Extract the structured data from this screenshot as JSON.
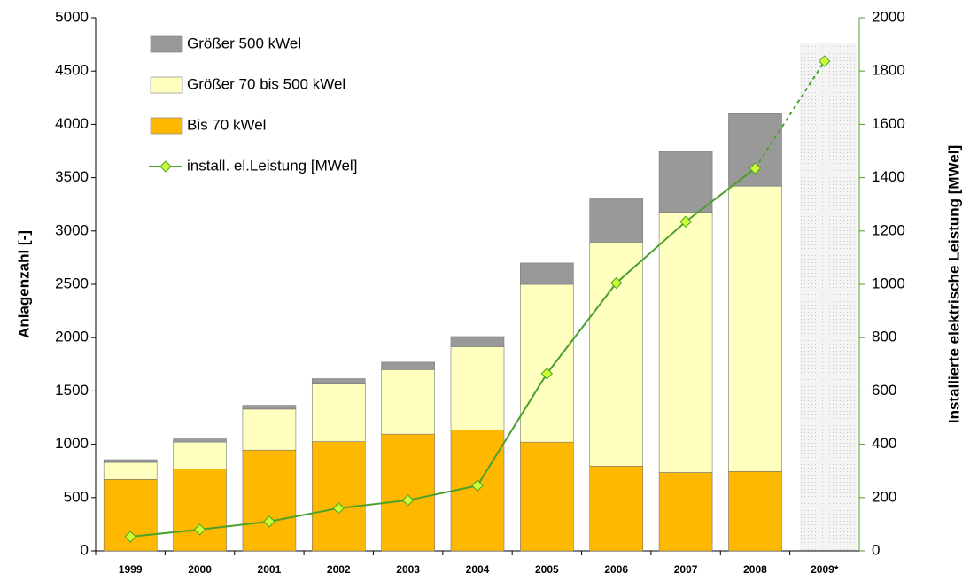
{
  "chart_data": {
    "type": "bar",
    "categories": [
      "1999",
      "2000",
      "2001",
      "2002",
      "2003",
      "2004",
      "2005",
      "2006",
      "2007",
      "2008",
      "2009*"
    ],
    "series": [
      {
        "name": "Bis 70 kWel",
        "color": "#ffb800",
        "values": [
          670,
          770,
          945,
          1025,
          1095,
          1135,
          1020,
          795,
          735,
          745,
          null
        ]
      },
      {
        "name": "Größer 70 bis 500 kWel",
        "color": "#ffffc0",
        "values": [
          160,
          250,
          385,
          540,
          605,
          780,
          1480,
          2100,
          2440,
          2675,
          null
        ]
      },
      {
        "name": "Größer 500 kWel",
        "color": "#999999",
        "values": [
          25,
          30,
          35,
          50,
          70,
          95,
          200,
          415,
          570,
          680,
          null
        ]
      },
      {
        "name": "install. el.Leistung [MWel]",
        "color": "#4aa02c",
        "marker_color": "#ccff33",
        "axis": "y2",
        "line": true,
        "dashed_last_segment": true,
        "values": [
          53,
          80,
          110,
          160,
          190,
          245,
          665,
          1005,
          1235,
          1435,
          1837
        ]
      }
    ],
    "ylabel": "Anlagenzahl [-]",
    "y2label": "Installierte elektrische Leistung  [MWel]",
    "ylim": [
      0,
      5000
    ],
    "yticks": [
      0,
      500,
      1000,
      1500,
      2000,
      2500,
      3000,
      3500,
      4000,
      4500,
      5000
    ],
    "y2lim": [
      0,
      2000
    ],
    "y2ticks": [
      0,
      200,
      400,
      600,
      800,
      1000,
      1200,
      1400,
      1600,
      1800,
      2000
    ],
    "stacked": true,
    "grid": false,
    "legend": "upper left"
  }
}
